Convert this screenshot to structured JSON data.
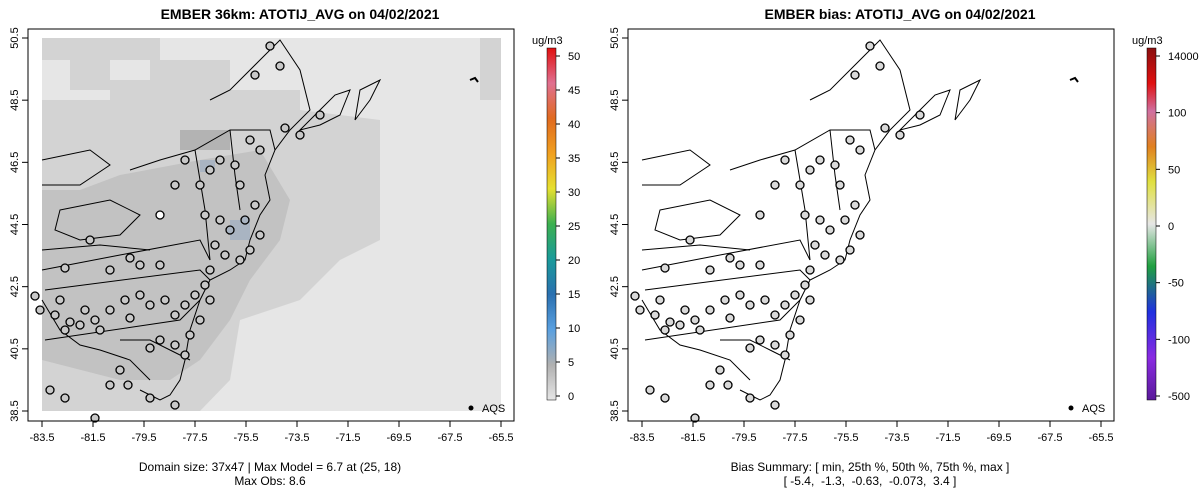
{
  "maps": [
    {
      "title": "EMBER 36km: ATOTIJ_AVG on 04/02/2021",
      "units": "ug/m3",
      "colorbar_labels": [
        "50",
        "45",
        "40",
        "35",
        "30",
        "25",
        "20",
        "15",
        "10",
        "5",
        "0"
      ],
      "x_ticks": [
        "-83.5",
        "-81.5",
        "-79.5",
        "-77.5",
        "-75.5",
        "-73.5",
        "-71.5",
        "-69.5",
        "-67.5",
        "-65.5"
      ],
      "y_ticks": [
        "50.5",
        "48.5",
        "46.5",
        "44.5",
        "42.5",
        "40.5",
        "38.5"
      ],
      "legend_label": "AQS",
      "footer_line1": "Domain size: 37x47 | Max Model = 6.7 at (25, 18)",
      "footer_line2": "Max Obs: 8.6"
    },
    {
      "title": "EMBER bias: ATOTIJ_AVG on 04/02/2021",
      "units": "ug/m3",
      "colorbar_labels": [
        "14000",
        "100",
        "50",
        "0",
        "-50",
        "-100",
        "-500"
      ],
      "x_ticks": [
        "-83.5",
        "-81.5",
        "-79.5",
        "-77.5",
        "-75.5",
        "-73.5",
        "-71.5",
        "-69.5",
        "-67.5",
        "-65.5"
      ],
      "y_ticks": [
        "50.5",
        "48.5",
        "46.5",
        "44.5",
        "42.5",
        "40.5",
        "38.5"
      ],
      "legend_label": "AQS",
      "footer_line1": "Bias Summary: [ min, 25th %, 50th %, 75th %, max ]",
      "footer_line2": "[ -5.4,  -1.3,  -0.63,  -0.073,  3.4 ]"
    }
  ],
  "colors": {
    "model_background": "#e6e6e6",
    "model_mid": "#d3d3d3",
    "model_dark": "#c2c2c2",
    "model_hot": "#a9b4c2",
    "bias_marker": "#d9d9d9"
  }
}
